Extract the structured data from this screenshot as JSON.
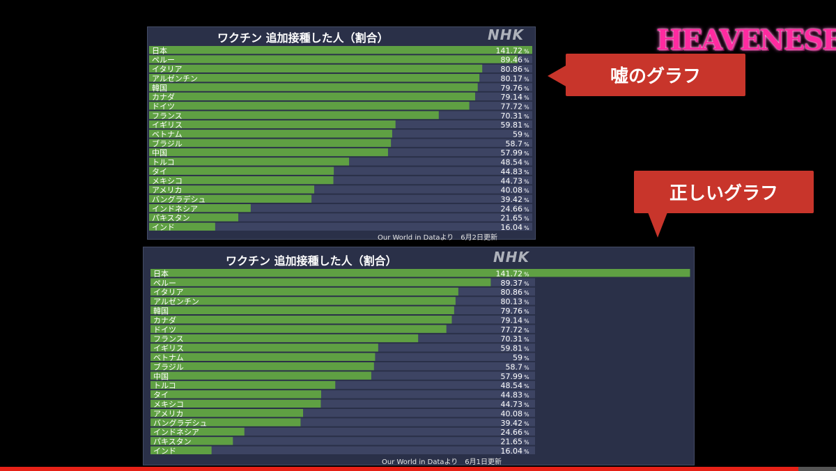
{
  "logo": {
    "text": "HEAVENESE"
  },
  "callouts": {
    "fake": "嘘のグラフ",
    "correct": "正しいグラフ"
  },
  "video": {
    "progress": 0.955
  },
  "charts": [
    {
      "title": "ワクチン 追加接種した人（割合）",
      "brand": "NHK",
      "source": "Our World in Dataより　6月2日更新",
      "percent_sign": "%",
      "value_labels": [
        "141.72",
        "89.46",
        "80.86",
        "80.17",
        "79.76",
        "79.14",
        "77.72",
        "70.31",
        "59.81",
        "59",
        "58.7",
        "57.99",
        "48.54",
        "44.83",
        "44.73",
        "40.08",
        "39.42",
        "24.66",
        "21.65",
        "16.04"
      ],
      "max_value_labels": [
        "141.72"
      ]
    },
    {
      "title": "ワクチン 追加接種した人（割合）",
      "brand": "NHK",
      "source": "Our World in Dataより　6月1日更新",
      "percent_sign": "%",
      "value_labels": [
        "141.72",
        "89.37",
        "80.86",
        "80.13",
        "79.76",
        "79.14",
        "77.72",
        "70.31",
        "59.81",
        "59",
        "58.7",
        "57.99",
        "48.54",
        "44.83",
        "44.73",
        "40.08",
        "39.42",
        "24.66",
        "21.65",
        "16.04"
      ]
    }
  ],
  "chart_data": [
    {
      "type": "bar",
      "title": "ワクチン 追加接種した人（割合）",
      "categories": [
        "日本",
        "ペルー",
        "イタリア",
        "アルゼンチン",
        "韓国",
        "カナダ",
        "ドイツ",
        "フランス",
        "イギリス",
        "ベトナム",
        "ブラジル",
        "中国",
        "トルコ",
        "タイ",
        "メキシコ",
        "アメリカ",
        "バングラデシュ",
        "インドネシア",
        "パキスタン",
        "インド"
      ],
      "values": [
        141.72,
        89.46,
        80.86,
        80.17,
        79.76,
        79.14,
        77.72,
        70.31,
        59.81,
        59,
        58.7,
        57.99,
        48.54,
        44.83,
        44.73,
        40.08,
        39.42,
        24.66,
        21.65,
        16.04
      ],
      "unit": "%",
      "colors": {
        "bar": "#5fa043",
        "background": "#3d4463"
      }
    },
    {
      "type": "bar",
      "title": "ワクチン 追加接種した人（割合）",
      "categories": [
        "日本",
        "ペルー",
        "イタリア",
        "アルゼンチン",
        "韓国",
        "カナダ",
        "ドイツ",
        "フランス",
        "イギリス",
        "ベトナム",
        "ブラジル",
        "中国",
        "トルコ",
        "タイ",
        "メキシコ",
        "アメリカ",
        "バングラデシュ",
        "インドネシア",
        "パキスタン",
        "インド"
      ],
      "values": [
        141.72,
        89.37,
        80.86,
        80.13,
        79.76,
        79.14,
        77.72,
        70.31,
        59.81,
        59,
        58.7,
        57.99,
        48.54,
        44.83,
        44.73,
        40.08,
        39.42,
        24.66,
        21.65,
        16.04
      ],
      "unit": "%",
      "colors": {
        "bar": "#5fa043",
        "background": "#3d4463"
      }
    }
  ]
}
